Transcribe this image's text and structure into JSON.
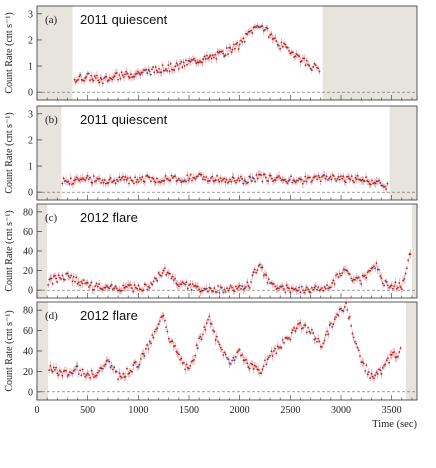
{
  "chart_data": [
    {
      "type": "scatter",
      "panel_label": "(a)",
      "title": "2011 quiescent",
      "ylabel": "Count Rate (cnt s⁻¹)",
      "ylim": [
        -0.3,
        3.3
      ],
      "yticks": [
        0,
        1,
        2,
        3
      ],
      "xlim": [
        0,
        3750
      ],
      "shaded_ranges": [
        [
          0,
          350
        ],
        [
          2820,
          3750
        ]
      ],
      "series": [
        {
          "x": [
            370,
            500,
            650,
            800,
            950,
            1100,
            1250,
            1400,
            1550,
            1700,
            1850,
            2000,
            2100,
            2200,
            2300,
            2400,
            2500,
            2600,
            2700,
            2800
          ],
          "values": [
            0.5,
            0.6,
            0.45,
            0.6,
            0.7,
            0.8,
            0.9,
            1.0,
            1.2,
            1.3,
            1.5,
            1.8,
            2.3,
            2.6,
            2.2,
            1.8,
            1.6,
            1.3,
            1.0,
            0.9
          ]
        }
      ]
    },
    {
      "type": "scatter",
      "panel_label": "(b)",
      "title": "2011 quiescent",
      "ylabel": "Count Rate (cnt s⁻¹)",
      "ylim": [
        -0.3,
        3.3
      ],
      "yticks": [
        0,
        1,
        2,
        3
      ],
      "xlim": [
        0,
        3750
      ],
      "shaded_ranges": [
        [
          0,
          240
        ],
        [
          3480,
          3750
        ]
      ],
      "series": [
        {
          "x": [
            250,
            500,
            800,
            1100,
            1400,
            1600,
            1800,
            2000,
            2200,
            2400,
            2600,
            2800,
            3000,
            3200,
            3400,
            3470
          ],
          "values": [
            0.4,
            0.5,
            0.45,
            0.5,
            0.5,
            0.6,
            0.5,
            0.45,
            0.55,
            0.5,
            0.45,
            0.55,
            0.5,
            0.5,
            0.3,
            0.2
          ]
        }
      ]
    },
    {
      "type": "scatter",
      "panel_label": "(c)",
      "title": "2012 flare",
      "ylabel": "Count Rate (cnt s⁻¹)",
      "ylim": [
        -8,
        88
      ],
      "yticks": [
        0,
        20,
        40,
        60,
        80
      ],
      "xlim": [
        0,
        3750
      ],
      "shaded_ranges": [
        [
          0,
          100
        ],
        [
          3700,
          3750
        ]
      ],
      "series": [
        {
          "x": [
            110,
            200,
            300,
            400,
            500,
            600,
            700,
            800,
            900,
            1000,
            1100,
            1200,
            1250,
            1300,
            1400,
            1500,
            1600,
            1700,
            1800,
            1900,
            2000,
            2100,
            2150,
            2200,
            2250,
            2300,
            2400,
            2500,
            2600,
            2700,
            2800,
            2900,
            3000,
            3050,
            3100,
            3200,
            3300,
            3350,
            3400,
            3500,
            3600,
            3700
          ],
          "values": [
            8,
            12,
            14,
            10,
            5,
            3,
            2,
            1,
            2,
            2,
            4,
            14,
            20,
            15,
            6,
            4,
            2,
            1,
            1,
            1,
            2,
            6,
            18,
            26,
            16,
            6,
            2,
            1,
            1,
            1,
            2,
            5,
            18,
            22,
            14,
            10,
            20,
            28,
            10,
            5,
            4,
            45
          ]
        }
      ]
    },
    {
      "type": "scatter",
      "panel_label": "(d)",
      "title": "2012 flare",
      "ylabel": "Count Rate (cnt s⁻¹)",
      "ylim": [
        -8,
        88
      ],
      "yticks": [
        0,
        20,
        40,
        60,
        80
      ],
      "xlim": [
        0,
        3750
      ],
      "xticks": [
        0,
        500,
        1000,
        1500,
        2000,
        2500,
        3000,
        3500
      ],
      "xlabel": "Time (sec)",
      "shaded_ranges": [
        [
          0,
          110
        ],
        [
          3640,
          3750
        ]
      ],
      "series": [
        {
          "x": [
            120,
            200,
            300,
            400,
            500,
            600,
            700,
            800,
            900,
            1000,
            1100,
            1200,
            1250,
            1300,
            1400,
            1500,
            1600,
            1700,
            1800,
            1900,
            2000,
            2100,
            2200,
            2300,
            2400,
            2500,
            2600,
            2700,
            2800,
            2900,
            3000,
            3050,
            3100,
            3200,
            3300,
            3400,
            3500,
            3600
          ],
          "values": [
            25,
            20,
            18,
            22,
            15,
            20,
            30,
            15,
            20,
            28,
            45,
            65,
            78,
            55,
            35,
            20,
            50,
            70,
            45,
            30,
            38,
            25,
            20,
            35,
            45,
            55,
            65,
            60,
            45,
            65,
            80,
            85,
            65,
            30,
            15,
            20,
            35,
            40
          ]
        }
      ]
    }
  ]
}
